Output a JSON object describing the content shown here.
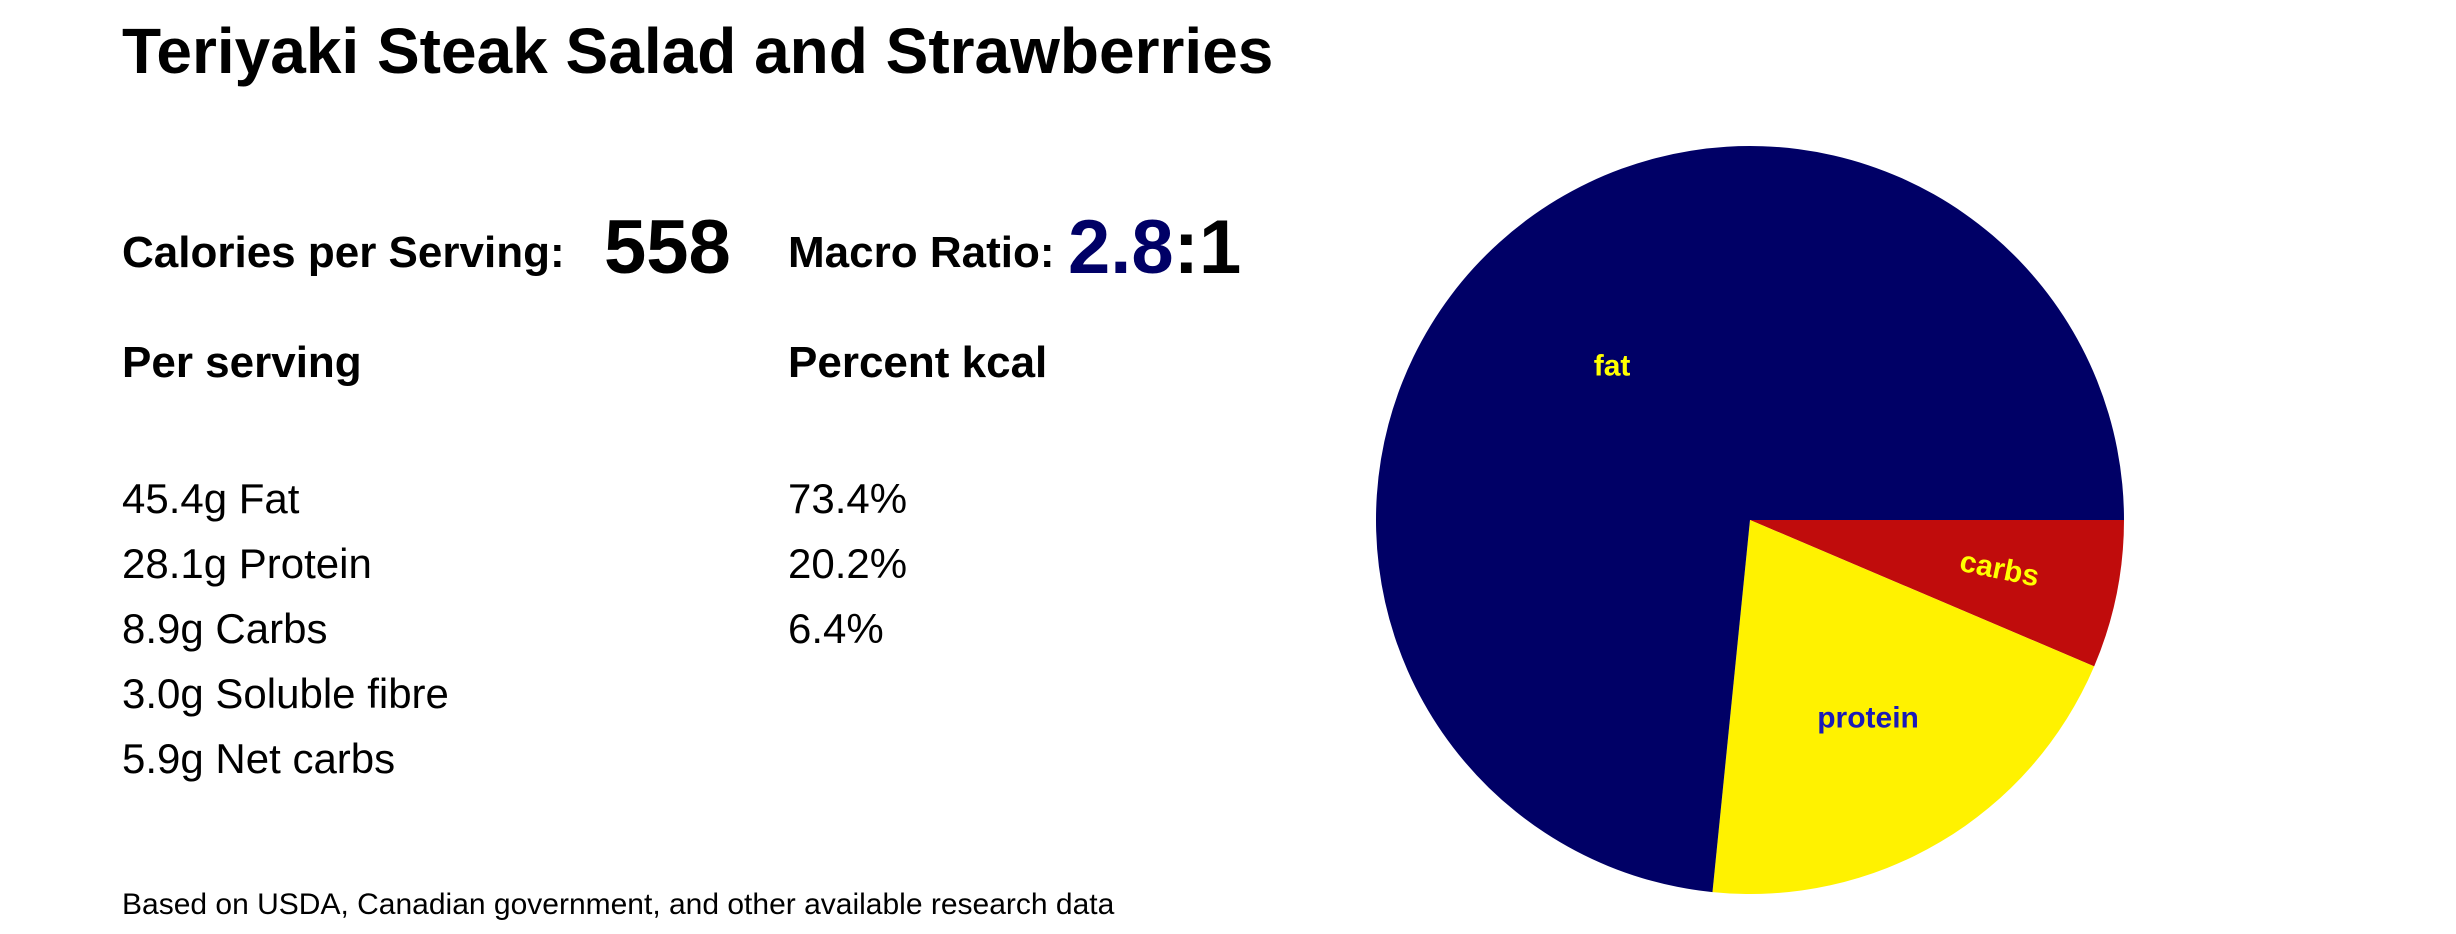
{
  "title": "Teriyaki Steak Salad and Strawberries",
  "calories": {
    "label": "Calories per Serving:",
    "value": "558"
  },
  "macro_ratio": {
    "label": "Macro Ratio:",
    "value": "2.8",
    "separator": ":1"
  },
  "per_serving": {
    "heading": "Per serving",
    "items": [
      "45.4g Fat",
      "28.1g Protein",
      "8.9g Carbs",
      "3.0g Soluble fibre",
      "5.9g Net carbs"
    ]
  },
  "percent_kcal": {
    "heading": "Percent kcal",
    "items": [
      "73.4%",
      "20.2%",
      "6.4%"
    ]
  },
  "footnote": "Based on USDA, Canadian government, and other available research data",
  "colors": {
    "fat": "#000066",
    "protein": "#fff200",
    "carbs": "#c00c0c",
    "label_yellow": "#ffff00",
    "label_blue": "#1a1ab8"
  },
  "chart_data": {
    "type": "pie",
    "slices": [
      {
        "label": "carbs",
        "value": 6.4,
        "color": "#c00c0c",
        "label_color": "#ffff00"
      },
      {
        "label": "protein",
        "value": 20.2,
        "color": "#fff200",
        "label_color": "#1a1ab8"
      },
      {
        "label": "fat",
        "value": 73.4,
        "color": "#000066",
        "label_color": "#ffff00"
      }
    ],
    "start_angle_deg": 0,
    "direction": "clockwise"
  }
}
